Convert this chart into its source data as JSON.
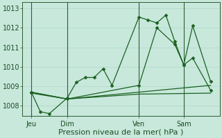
{
  "background_color": "#c8e8dc",
  "plot_bg_color": "#c8e8dc",
  "grid_color": "#a8d4c8",
  "line_color": "#1a6020",
  "marker_color": "#1a6020",
  "xlabel": "Pression niveau de la mer( hPa )",
  "ylim": [
    1007.5,
    1013.3
  ],
  "yticks": [
    1008,
    1009,
    1010,
    1011,
    1012,
    1013
  ],
  "xtick_labels": [
    "Jeu",
    "Dim",
    "Ven",
    "Sam"
  ],
  "xtick_positions": [
    1,
    5,
    13,
    18
  ],
  "vline_positions": [
    1,
    5,
    13,
    18
  ],
  "xlim": [
    0,
    22
  ],
  "series1": {
    "x": [
      1,
      2,
      3,
      5,
      6,
      7,
      8,
      9,
      10,
      13,
      14,
      15,
      16,
      17,
      18,
      19,
      21
    ],
    "y": [
      1008.7,
      1007.7,
      1007.6,
      1008.4,
      1009.2,
      1009.45,
      1009.45,
      1009.9,
      1009.05,
      1012.55,
      1012.4,
      1012.25,
      1012.65,
      1011.3,
      1010.1,
      1010.45,
      1008.8
    ]
  },
  "series2": {
    "x": [
      1,
      5,
      13,
      15,
      17,
      18,
      19,
      21
    ],
    "y": [
      1008.7,
      1008.35,
      1009.05,
      1012.0,
      1011.15,
      1010.1,
      1012.1,
      1009.25
    ]
  },
  "series3": {
    "x": [
      1,
      5,
      21
    ],
    "y": [
      1008.7,
      1008.35,
      1009.05
    ]
  },
  "series4": {
    "x": [
      1,
      5,
      13,
      21
    ],
    "y": [
      1008.65,
      1008.35,
      1008.6,
      1008.65
    ]
  },
  "font_size_label": 8,
  "font_size_tick": 7
}
